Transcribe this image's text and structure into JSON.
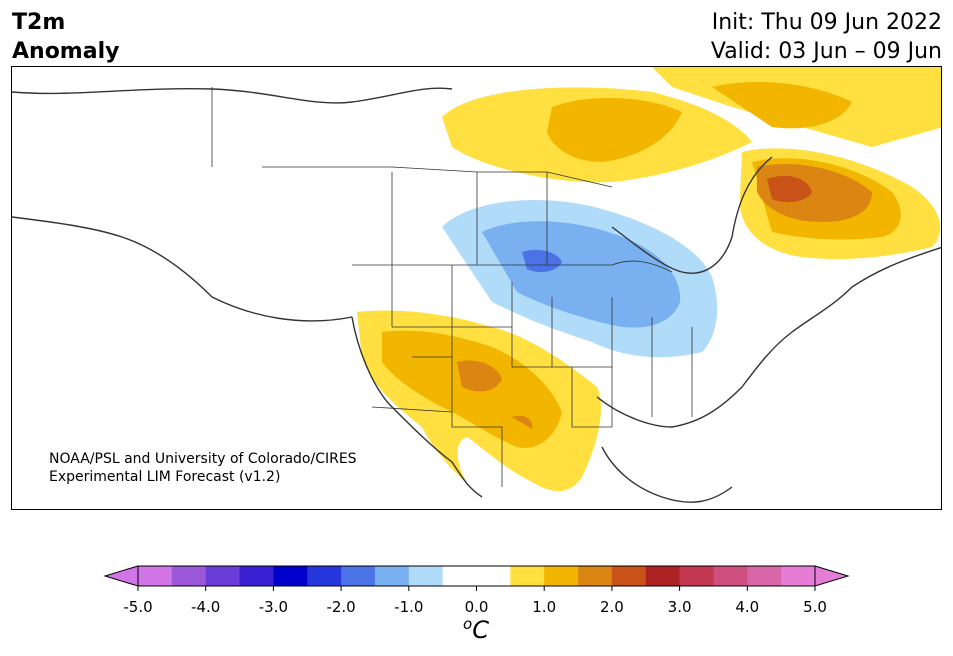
{
  "header": {
    "variable_line1": "T2m",
    "variable_line2": "Anomaly",
    "init": "Init: Thu 09 Jun 2022",
    "valid": "Valid: 03 Jun – 09 Jun"
  },
  "credit": {
    "line1": "NOAA/PSL and University of Colorado/CIRES",
    "line2": "Experimental LIM Forecast (v1.2)"
  },
  "colorbar": {
    "unit_degree": "o",
    "unit_letter": "C",
    "ticks": [
      "-5.0",
      "-4.0",
      "-3.0",
      "-2.0",
      "-1.0",
      "0.0",
      "1.0",
      "2.0",
      "3.0",
      "4.0",
      "5.0"
    ],
    "colors": [
      "#d275e6",
      "#9b58d9",
      "#6a3cd8",
      "#3a1fd4",
      "#0000cc",
      "#2536db",
      "#4b73e7",
      "#78b0f0",
      "#b0dcfa",
      "#ffffff",
      "#ffffff",
      "#ffe040",
      "#f2b600",
      "#db8612",
      "#c85218",
      "#ad2222",
      "#c23850",
      "#cf4f7e",
      "#d966a8",
      "#e57cd6"
    ],
    "under_color": "#d275e6",
    "over_color": "#e57cd6"
  },
  "map": {
    "anomaly_colors": {
      "warm_light": "#ffe040",
      "warm_mid": "#f2b600",
      "warm_strong": "#db8612",
      "warm_peak": "#c85218",
      "cool_light": "#b0dcfa",
      "cool_mid": "#78b0f0",
      "cool_strong": "#4b73e7"
    },
    "warm_regions": [
      "northern Canada / Nunavut",
      "Quebec–Labrador",
      "US Southwest",
      "northern Mexico"
    ],
    "cool_regions": [
      "Upper Midwest",
      "southern Manitoba / northern Ontario",
      "Great Lakes"
    ]
  }
}
